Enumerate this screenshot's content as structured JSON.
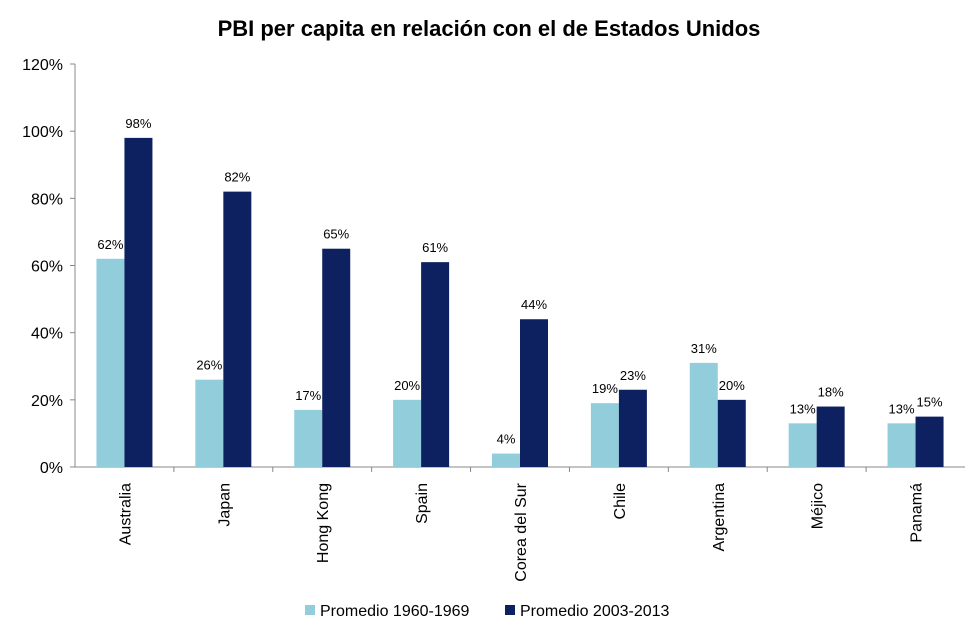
{
  "chart_data": {
    "type": "bar",
    "title": "PBI per capita en relación con el de Estados Unidos",
    "xlabel": "",
    "ylabel": "",
    "ylim": [
      0,
      120
    ],
    "yticks": [
      "0%",
      "20%",
      "40%",
      "60%",
      "80%",
      "100%",
      "120%"
    ],
    "categories": [
      "Australia",
      "Japan",
      "Hong Kong",
      "Spain",
      "Corea del Sur",
      "Chile",
      "Argentina",
      "Méjico",
      "Panamá"
    ],
    "series": [
      {
        "name": "Promedio 1960-1969",
        "color": "#92CDDC",
        "values": [
          62,
          26,
          17,
          20,
          4,
          19,
          31,
          13,
          13
        ],
        "labels": [
          "62%",
          "26%",
          "17%",
          "20%",
          "4%",
          "19%",
          "31%",
          "13%",
          "13%"
        ]
      },
      {
        "name": "Promedio 2003-2013",
        "color": "#0D2160",
        "values": [
          98,
          82,
          65,
          61,
          44,
          23,
          20,
          18,
          15
        ],
        "labels": [
          "98%",
          "82%",
          "65%",
          "61%",
          "44%",
          "23%",
          "20%",
          "18%",
          "15%"
        ]
      }
    ],
    "grid": false,
    "legend_position": "bottom"
  }
}
